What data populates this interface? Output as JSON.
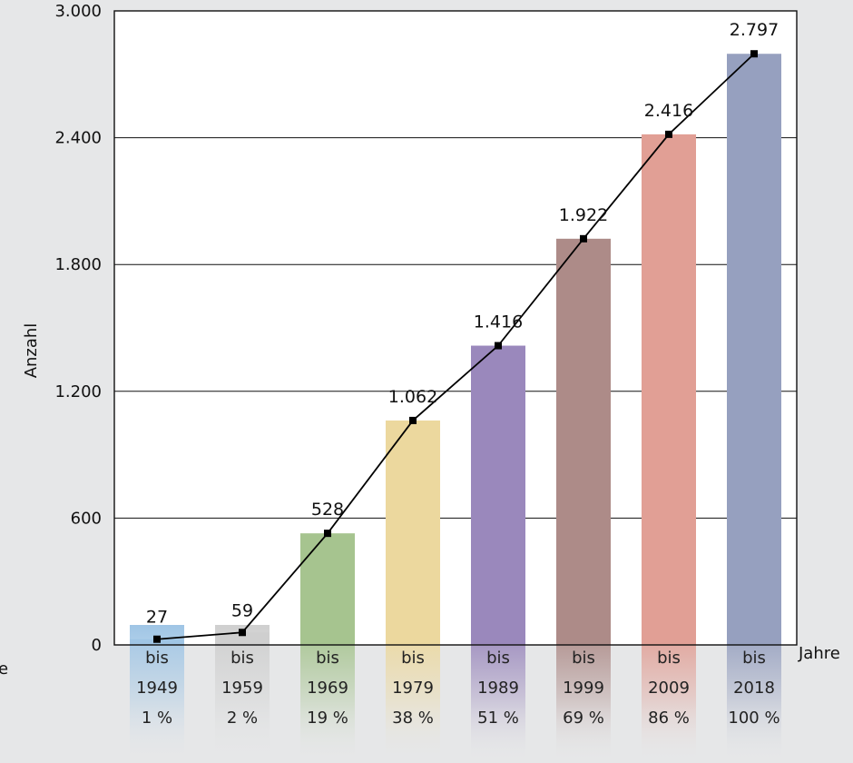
{
  "chart_data": {
    "type": "bar",
    "ylabel": "Anzahl",
    "xlabel": "Jahre",
    "left_fragment": "e",
    "ylim": [
      0,
      3000
    ],
    "yticks": [
      0,
      600,
      1200,
      1800,
      2400,
      3000
    ],
    "ytick_labels": [
      "0",
      "600",
      "1.200",
      "1.800",
      "2.400",
      "3.000"
    ],
    "categories": [
      {
        "line1": "bis",
        "line2": "1949",
        "line3": "1 %"
      },
      {
        "line1": "bis",
        "line2": "1959",
        "line3": "2 %"
      },
      {
        "line1": "bis",
        "line2": "1969",
        "line3": "19 %"
      },
      {
        "line1": "bis",
        "line2": "1979",
        "line3": "38 %"
      },
      {
        "line1": "bis",
        "line2": "1989",
        "line3": "51 %"
      },
      {
        "line1": "bis",
        "line2": "1999",
        "line3": "69 %"
      },
      {
        "line1": "bis",
        "line2": "2009",
        "line3": "86 %"
      },
      {
        "line1": "bis",
        "line2": "2018",
        "line3": "100 %"
      }
    ],
    "values": [
      27,
      59,
      528,
      1062,
      1416,
      1922,
      2416,
      2797
    ],
    "value_labels": [
      "27",
      "59",
      "528",
      "1.062",
      "1.416",
      "1.922",
      "2.416",
      "2.797"
    ],
    "colors": [
      "#9fc5e5",
      "#cfcfcf",
      "#a6c48f",
      "#ecd89e",
      "#9a88bc",
      "#ad8b88",
      "#e19f95",
      "#96a0bf"
    ],
    "grid": true,
    "line_overlay": true
  }
}
